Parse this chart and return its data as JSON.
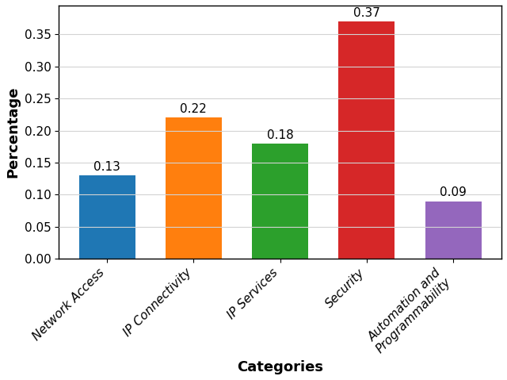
{
  "categories": [
    "Network Access",
    "IP Connectivity",
    "IP Services",
    "Security",
    "Automation and\nProgrammability"
  ],
  "values": [
    0.13,
    0.22,
    0.18,
    0.37,
    0.09
  ],
  "bar_colors": [
    "#1f77b4",
    "#ff7f0e",
    "#2ca02c",
    "#d62728",
    "#9467bd"
  ],
  "labels": [
    "0.13",
    "0.22",
    "0.18",
    "0.37",
    "0.09"
  ],
  "xlabel": "Categories",
  "ylabel": "Percentage",
  "ylim": [
    0,
    0.395
  ],
  "yticks": [
    0.0,
    0.05,
    0.1,
    0.15,
    0.2,
    0.25,
    0.3,
    0.35
  ],
  "grid_color": "#d3d3d3",
  "label_fontsize": 13,
  "tick_fontsize": 11,
  "bar_label_fontsize": 11,
  "bar_width": 0.65,
  "background_color": "#ffffff"
}
